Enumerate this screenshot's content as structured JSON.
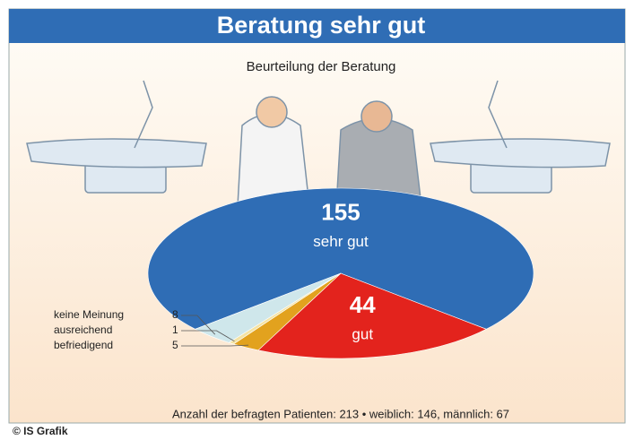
{
  "chart_data": {
    "type": "pie",
    "title": "Beratung sehr gut",
    "subtitle": "Beurteilung der Beratung",
    "categories": [
      "sehr gut",
      "gut",
      "befriedigend",
      "ausreichend",
      "keine Meinung"
    ],
    "values": [
      155,
      44,
      5,
      1,
      8
    ],
    "colors": [
      "#2f6db5",
      "#e3231d",
      "#e2a21e",
      "#f4e3a4",
      "#cfe7eb"
    ],
    "note": "Anzahl der befragten Patienten: 213 • weiblich: 146, männlich: 67",
    "credit": "© IS Grafik"
  }
}
